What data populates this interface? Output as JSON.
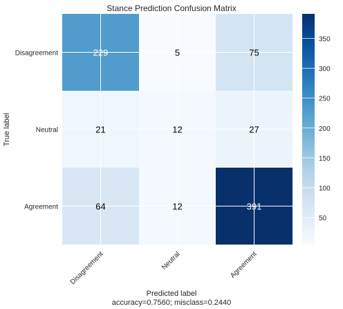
{
  "chart_data": {
    "type": "heatmap",
    "title": "Stance Prediction Confusion Matrix",
    "xlabel": "Predicted label",
    "ylabel": "True label",
    "footer": "accuracy=0.7560; misclass=0.2440",
    "x_categories": [
      "Disagreement",
      "Neutral",
      "Agreement"
    ],
    "y_categories": [
      "Disagreement",
      "Neutral",
      "Agreement"
    ],
    "values": [
      [
        229,
        5,
        75
      ],
      [
        21,
        12,
        27
      ],
      [
        64,
        12,
        391
      ]
    ],
    "colormap": "Blues",
    "colorbar": {
      "min": 5,
      "max": 391,
      "ticks": [
        50,
        100,
        150,
        200,
        250,
        300,
        350
      ]
    },
    "grid": true
  }
}
